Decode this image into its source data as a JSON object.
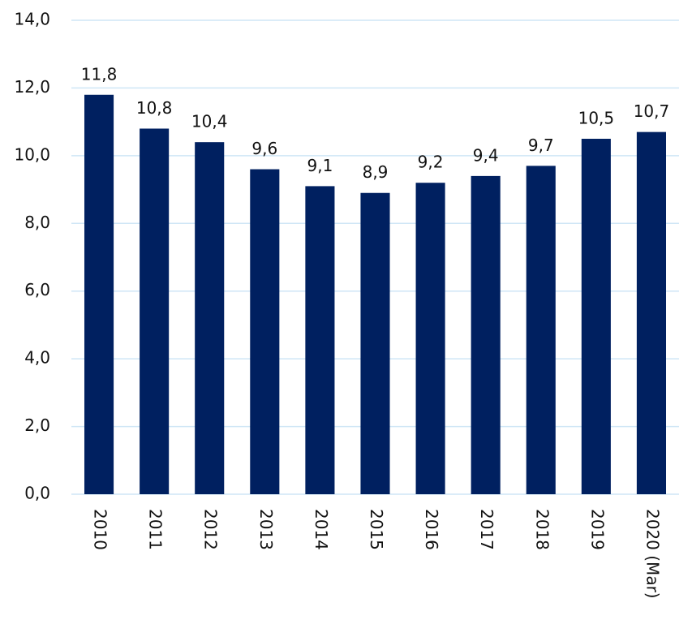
{
  "chart_data": {
    "type": "bar",
    "categories": [
      "2010",
      "2011",
      "2012",
      "2013",
      "2014",
      "2015",
      "2016",
      "2017",
      "2018",
      "2019",
      "2020 (Mar)"
    ],
    "values": [
      11.8,
      10.8,
      10.4,
      9.6,
      9.1,
      8.9,
      9.2,
      9.4,
      9.7,
      10.5,
      10.7
    ],
    "value_labels": [
      "11,8",
      "10,8",
      "10,4",
      "9,6",
      "9,1",
      "8,9",
      "9,2",
      "9,4",
      "9,7",
      "10,5",
      "10,7"
    ],
    "color": "#002060",
    "ylim": [
      0,
      14
    ],
    "yticks": [
      {
        "value": 0,
        "label": "0,0"
      },
      {
        "value": 2,
        "label": "2,0"
      },
      {
        "value": 4,
        "label": "4,0"
      },
      {
        "value": 6,
        "label": "6,0"
      },
      {
        "value": 8,
        "label": "8,0"
      },
      {
        "value": 10,
        "label": "10,0"
      },
      {
        "value": 12,
        "label": "12,0"
      },
      {
        "value": 14,
        "label": "14,0"
      }
    ],
    "grid": true
  }
}
